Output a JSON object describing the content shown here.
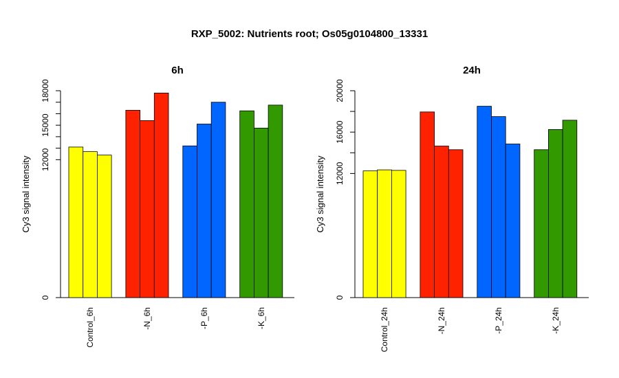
{
  "title": "RXP_5002: Nutrients root; Os05g0104800_13331",
  "chart_data": [
    {
      "type": "bar",
      "title": "6h",
      "ylabel": "Cy3 signal intensity",
      "xlabel": "",
      "ylim": [
        0,
        18000
      ],
      "yticks": [
        0,
        12000,
        15000,
        18000
      ],
      "minor_ticks": [
        13000,
        14000,
        16000,
        17000
      ],
      "categories": [
        "Control_6h",
        "-N_6h",
        "-P_6h",
        "-K_6h"
      ],
      "groups": [
        {
          "category": "Control_6h",
          "color": "#ffff00",
          "values": [
            13100,
            12700,
            12400
          ]
        },
        {
          "category": "-N_6h",
          "color": "#ff2200",
          "values": [
            16300,
            15400,
            17800
          ]
        },
        {
          "category": "-P_6h",
          "color": "#0066ff",
          "values": [
            13200,
            15100,
            17000
          ]
        },
        {
          "category": "-K_6h",
          "color": "#339900",
          "values": [
            16250,
            14750,
            16750
          ]
        }
      ]
    },
    {
      "type": "bar",
      "title": "24h",
      "ylabel": "Cy3 signal intensity",
      "xlabel": "",
      "ylim": [
        0,
        20000
      ],
      "yticks": [
        0,
        12000,
        16000,
        20000
      ],
      "minor_ticks": [
        14000,
        18000
      ],
      "categories": [
        "Control_24h",
        "-N_24h",
        "-P_24h",
        "-K_24h"
      ],
      "groups": [
        {
          "category": "Control_24h",
          "color": "#ffff00",
          "values": [
            12250,
            12350,
            12300
          ]
        },
        {
          "category": "-N_24h",
          "color": "#ff2200",
          "values": [
            17950,
            14650,
            14300
          ]
        },
        {
          "category": "-P_24h",
          "color": "#0066ff",
          "values": [
            18500,
            17500,
            14850
          ]
        },
        {
          "category": "-K_24h",
          "color": "#339900",
          "values": [
            14300,
            16250,
            17150
          ]
        }
      ]
    }
  ]
}
